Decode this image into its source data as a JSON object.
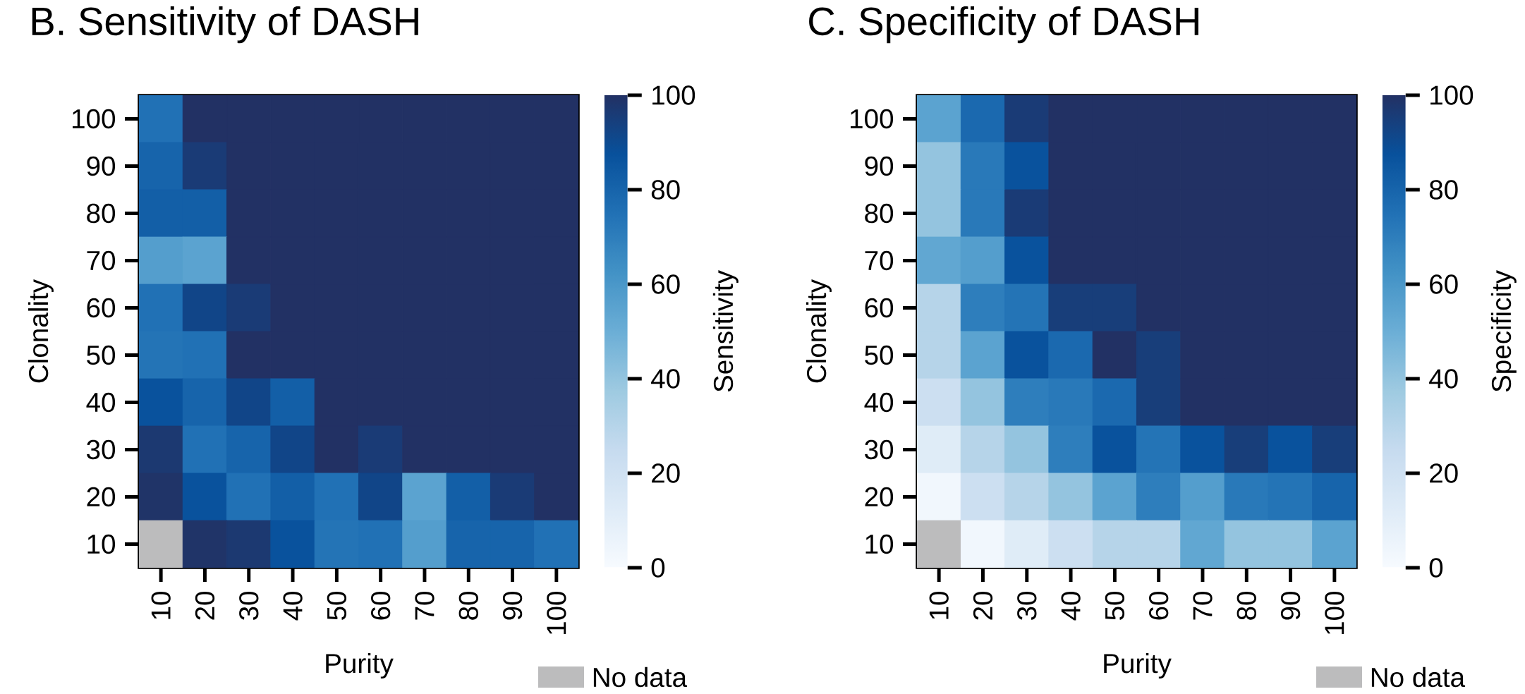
{
  "chart_data": [
    {
      "type": "heatmap",
      "title": "B. Sensitivity of DASH",
      "xlabel": "Purity",
      "ylabel": "Clonality",
      "clabel": "Sensitivity",
      "categories": [
        "10",
        "20",
        "30",
        "40",
        "50",
        "60",
        "70",
        "80",
        "90",
        "100"
      ],
      "y_categories": [
        "100",
        "90",
        "80",
        "70",
        "60",
        "50",
        "40",
        "30",
        "20",
        "10"
      ],
      "cells": [
        [
          75,
          100,
          100,
          100,
          100,
          100,
          100,
          100,
          100,
          100
        ],
        [
          80,
          96,
          100,
          100,
          100,
          100,
          100,
          100,
          100,
          100
        ],
        [
          82,
          82,
          100,
          100,
          100,
          100,
          100,
          100,
          100,
          100
        ],
        [
          57,
          55,
          100,
          100,
          100,
          100,
          100,
          100,
          100,
          100
        ],
        [
          75,
          92,
          96,
          100,
          100,
          100,
          100,
          100,
          100,
          100
        ],
        [
          74,
          75,
          100,
          100,
          100,
          100,
          100,
          100,
          100,
          100
        ],
        [
          87,
          80,
          92,
          82,
          100,
          100,
          100,
          100,
          100,
          100
        ],
        [
          97,
          75,
          80,
          92,
          100,
          96,
          100,
          100,
          100,
          100
        ],
        [
          99,
          87,
          75,
          82,
          75,
          92,
          55,
          82,
          96,
          100
        ],
        [
          null,
          99,
          97,
          87,
          74,
          75,
          57,
          80,
          80,
          75
        ]
      ],
      "clim": [
        0,
        100
      ],
      "cticks": [
        0,
        20,
        40,
        60,
        80,
        100
      ],
      "annotations": [
        "No data"
      ]
    },
    {
      "type": "heatmap",
      "title": "C. Specificity of DASH",
      "xlabel": "Purity",
      "ylabel": "Clonality",
      "clabel": "Specificity",
      "categories": [
        "10",
        "20",
        "30",
        "40",
        "50",
        "60",
        "70",
        "80",
        "90",
        "100"
      ],
      "y_categories": [
        "100",
        "90",
        "80",
        "70",
        "60",
        "50",
        "40",
        "30",
        "20",
        "10"
      ],
      "cells": [
        [
          55,
          78,
          96,
          100,
          100,
          100,
          100,
          100,
          100,
          100
        ],
        [
          40,
          72,
          87,
          100,
          100,
          100,
          100,
          100,
          100,
          100
        ],
        [
          40,
          72,
          96,
          100,
          100,
          100,
          100,
          100,
          100,
          100
        ],
        [
          53,
          57,
          87,
          100,
          100,
          100,
          100,
          100,
          100,
          100
        ],
        [
          30,
          70,
          74,
          95,
          95,
          100,
          100,
          100,
          100,
          100
        ],
        [
          30,
          55,
          87,
          78,
          100,
          95,
          100,
          100,
          100,
          100
        ],
        [
          22,
          40,
          70,
          72,
          78,
          95,
          100,
          100,
          100,
          100
        ],
        [
          12,
          30,
          40,
          70,
          87,
          74,
          87,
          95,
          87,
          95
        ],
        [
          3,
          22,
          30,
          40,
          55,
          70,
          57,
          72,
          74,
          80
        ],
        [
          null,
          3,
          12,
          22,
          30,
          30,
          53,
          40,
          40,
          55
        ]
      ],
      "clim": [
        0,
        100
      ],
      "cticks": [
        0,
        20,
        40,
        60,
        80,
        100
      ],
      "annotations": [
        "No data"
      ]
    }
  ]
}
